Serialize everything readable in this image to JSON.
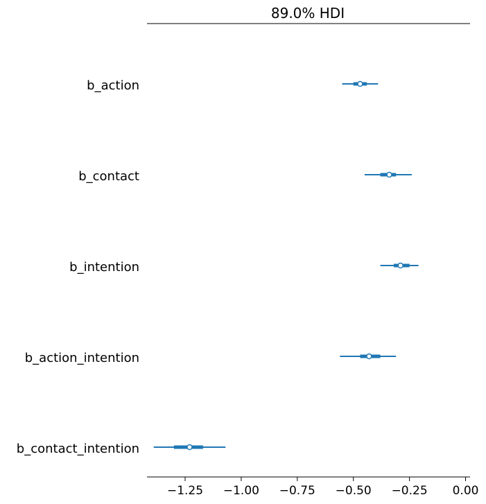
{
  "chart_data": {
    "type": "forest",
    "title": "89.0% HDI",
    "xlim": [
      -1.42,
      0.02
    ],
    "xticks": [
      {
        "value": -1.25,
        "label": "−1.25"
      },
      {
        "value": -1.0,
        "label": "−1.00"
      },
      {
        "value": -0.75,
        "label": "−0.75"
      },
      {
        "value": -0.5,
        "label": "−0.50"
      },
      {
        "value": -0.25,
        "label": "−0.25"
      },
      {
        "value": 0.0,
        "label": "0.00"
      }
    ],
    "color": "#1f77b4",
    "parameters": [
      {
        "name": "b_action",
        "mean": -0.47,
        "hdi_low": -0.55,
        "hdi_high": -0.39,
        "q25": -0.5,
        "q75": -0.44
      },
      {
        "name": "b_contact",
        "mean": -0.34,
        "hdi_low": -0.45,
        "hdi_high": -0.24,
        "q25": -0.38,
        "q75": -0.31
      },
      {
        "name": "b_intention",
        "mean": -0.29,
        "hdi_low": -0.38,
        "hdi_high": -0.21,
        "q25": -0.32,
        "q75": -0.25
      },
      {
        "name": "b_action_intention",
        "mean": -0.43,
        "hdi_low": -0.56,
        "hdi_high": -0.31,
        "q25": -0.47,
        "q75": -0.38
      },
      {
        "name": "b_contact_intention",
        "mean": -1.23,
        "hdi_low": -1.39,
        "hdi_high": -1.07,
        "q25": -1.3,
        "q75": -1.17
      }
    ]
  }
}
